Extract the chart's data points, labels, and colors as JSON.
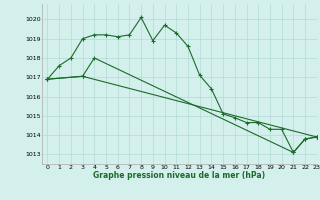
{
  "title": "Graphe pression niveau de la mer (hPa)",
  "background_color": "#d4f0ec",
  "grid_color": "#b8ddd8",
  "line_color": "#1a6b2a",
  "xlim": [
    -0.5,
    23
  ],
  "ylim": [
    1012.5,
    1020.8
  ],
  "yticks": [
    1013,
    1014,
    1015,
    1016,
    1017,
    1018,
    1019,
    1020
  ],
  "xticks": [
    0,
    1,
    2,
    3,
    4,
    5,
    6,
    7,
    8,
    9,
    10,
    11,
    12,
    13,
    14,
    15,
    16,
    17,
    18,
    19,
    20,
    21,
    22,
    23
  ],
  "series1_x": [
    0,
    1,
    2,
    3,
    4,
    5,
    6,
    7,
    8,
    9,
    10,
    11,
    12,
    13,
    14,
    15,
    16,
    17,
    18,
    19,
    20,
    21,
    22,
    23
  ],
  "series1_y": [
    1016.9,
    1017.6,
    1018.0,
    1019.0,
    1019.2,
    1019.2,
    1019.1,
    1019.2,
    1020.1,
    1018.9,
    1019.7,
    1019.3,
    1018.6,
    1017.1,
    1016.4,
    1015.1,
    1014.9,
    1014.65,
    1014.65,
    1014.3,
    1014.3,
    1013.1,
    1013.8,
    1013.9
  ],
  "series2_x": [
    0,
    3,
    4,
    21,
    22,
    23
  ],
  "series2_y": [
    1016.9,
    1017.05,
    1018.0,
    1013.1,
    1013.8,
    1013.9
  ],
  "series3_x": [
    0,
    3,
    23
  ],
  "series3_y": [
    1016.9,
    1017.05,
    1013.9
  ]
}
